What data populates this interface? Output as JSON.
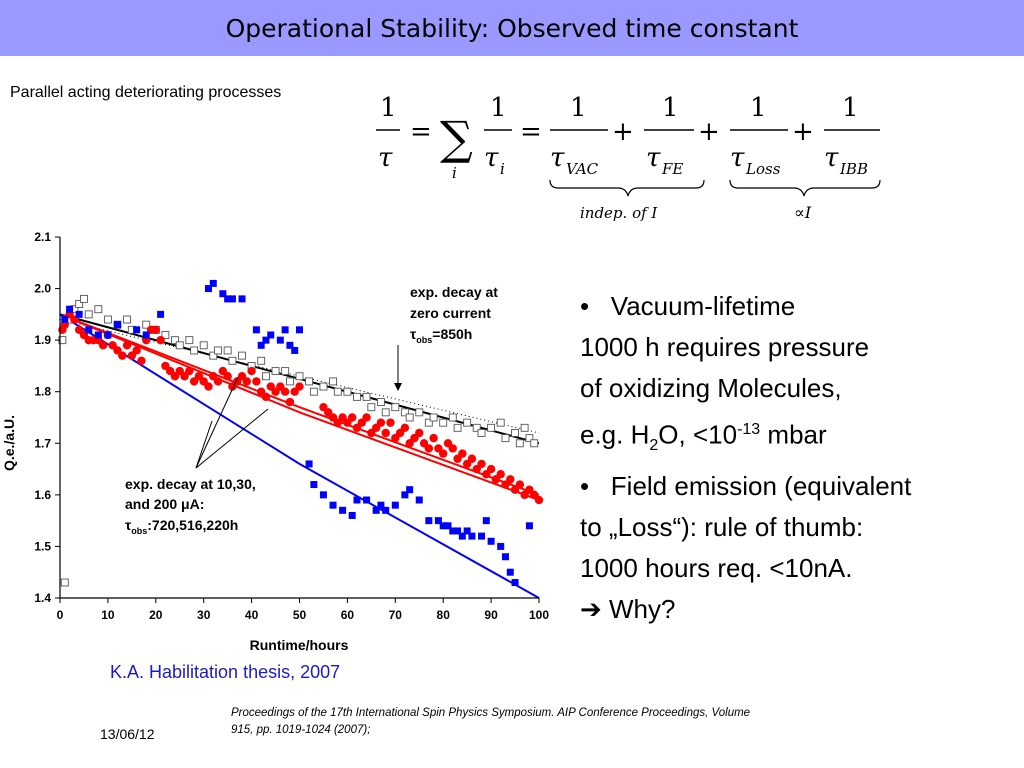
{
  "slide": {
    "title": "Operational Stability: Observed time constant",
    "subtitle": "Parallel acting deteriorating processes",
    "formula": {
      "numerator": "1",
      "tau": "τ",
      "sum": "∑",
      "index_i": "i",
      "sub_vac": "VAC",
      "sub_fe": "FE",
      "sub_loss": "Loss",
      "sub_ibb": "IBB",
      "brace_left_label": "indep. of  I",
      "brace_right_label": "∝I",
      "equals": "=",
      "plus": "+"
    },
    "bullets": {
      "b1_marker": "•",
      "b1_text": "Vacuum-lifetime",
      "line2": "1000 h requires pressure",
      "line3": "of oxidizing Molecules,",
      "line4_a": "e.g.  H",
      "line4_sub": "2",
      "line4_b": "O, <10",
      "line4_sup": "-13",
      "line4_c": " mbar",
      "b2_marker": "•",
      "b2_text": "Field emission (equivalent",
      "line6": "to „Loss“): rule of thumb:",
      "line7": "1000 hours req. <10nA.",
      "arrow": "➔",
      "why": " Why?"
    },
    "thesis_citation": "K.A. Habilitation thesis, 2007",
    "date": "13/06/12",
    "proceedings": "Proceedings of the 17th International Spin Physics Symposium. AIP Conference Proceedings, Volume 915, pp. 1019-1024 (2007);"
  },
  "chart_data": {
    "type": "scatter",
    "xlabel": "Runtime/hours",
    "ylabel": "Q.e./a.U.",
    "xlim": [
      0,
      100
    ],
    "ylim": [
      1.4,
      2.1
    ],
    "xticks": [
      "0",
      "10",
      "20",
      "30",
      "40",
      "50",
      "60",
      "70",
      "80",
      "90",
      "100"
    ],
    "yticks": [
      "1.4",
      "1.5",
      "1.6",
      "1.7",
      "1.8",
      "1.9",
      "2.0",
      "2.1"
    ],
    "annotation_zero": {
      "l1": "exp. decay at",
      "l2": "zero current",
      "l3_tau": "τ",
      "l3_sub": "obs",
      "l3_val": "=850h"
    },
    "annotation_current": {
      "l1": "exp. decay at 10,30,",
      "l2": "and 200 ",
      "l2_mu": "μ",
      "l2_a": "A:",
      "l3_tau": "τ",
      "l3_sub": "obs",
      "l3_val": ":720,516,220h"
    },
    "colors": {
      "zero": "#000000",
      "low": "#ff0000",
      "mid": "#ff0000",
      "high": "#0000ff"
    },
    "series": [
      {
        "marker": "open-square",
        "color": "#555555",
        "points": [
          [
            0.5,
            1.9
          ],
          [
            1,
            1.43
          ],
          [
            2,
            1.94
          ],
          [
            3,
            1.96
          ],
          [
            4,
            1.97
          ],
          [
            5,
            1.98
          ],
          [
            6,
            1.95
          ],
          [
            8,
            1.96
          ],
          [
            10,
            1.94
          ],
          [
            12,
            1.93
          ],
          [
            14,
            1.94
          ],
          [
            15,
            1.92
          ],
          [
            18,
            1.93
          ],
          [
            20,
            1.92
          ],
          [
            22,
            1.91
          ],
          [
            24,
            1.9
          ],
          [
            25,
            1.89
          ],
          [
            27,
            1.9
          ],
          [
            28,
            1.88
          ],
          [
            30,
            1.89
          ],
          [
            32,
            1.87
          ],
          [
            33,
            1.88
          ],
          [
            35,
            1.88
          ],
          [
            36,
            1.86
          ],
          [
            38,
            1.87
          ],
          [
            40,
            1.85
          ],
          [
            42,
            1.86
          ],
          [
            43,
            1.83
          ],
          [
            45,
            1.84
          ],
          [
            47,
            1.84
          ],
          [
            48,
            1.82
          ],
          [
            50,
            1.83
          ],
          [
            52,
            1.82
          ],
          [
            53,
            1.8
          ],
          [
            55,
            1.81
          ],
          [
            57,
            1.82
          ],
          [
            58,
            1.8
          ],
          [
            60,
            1.8
          ],
          [
            62,
            1.79
          ],
          [
            64,
            1.79
          ],
          [
            65,
            1.77
          ],
          [
            67,
            1.78
          ],
          [
            68,
            1.76
          ],
          [
            70,
            1.77
          ],
          [
            72,
            1.76
          ],
          [
            73,
            1.75
          ],
          [
            75,
            1.76
          ],
          [
            77,
            1.74
          ],
          [
            78,
            1.75
          ],
          [
            80,
            1.74
          ],
          [
            82,
            1.75
          ],
          [
            83,
            1.73
          ],
          [
            85,
            1.74
          ],
          [
            87,
            1.73
          ],
          [
            88,
            1.72
          ],
          [
            90,
            1.73
          ],
          [
            92,
            1.74
          ],
          [
            93,
            1.71
          ],
          [
            95,
            1.72
          ],
          [
            96,
            1.7
          ],
          [
            97,
            1.73
          ],
          [
            98,
            1.71
          ],
          [
            99,
            1.7
          ]
        ]
      },
      {
        "marker": "dot",
        "color": "#ff0000",
        "points": [
          [
            0.5,
            1.92
          ],
          [
            1,
            1.93
          ],
          [
            2,
            1.95
          ],
          [
            3,
            1.94
          ],
          [
            4,
            1.92
          ],
          [
            5,
            1.91
          ],
          [
            6,
            1.9
          ],
          [
            7,
            1.9
          ],
          [
            8,
            1.9
          ],
          [
            9,
            1.89
          ],
          [
            10,
            1.91
          ],
          [
            11,
            1.89
          ],
          [
            12,
            1.88
          ],
          [
            13,
            1.87
          ],
          [
            14,
            1.89
          ],
          [
            15,
            1.87
          ],
          [
            16,
            1.88
          ],
          [
            17,
            1.86
          ],
          [
            18,
            1.9
          ],
          [
            19,
            1.92
          ],
          [
            20,
            1.92
          ],
          [
            21,
            1.9
          ],
          [
            22,
            1.85
          ],
          [
            23,
            1.84
          ],
          [
            24,
            1.83
          ],
          [
            25,
            1.84
          ],
          [
            26,
            1.83
          ],
          [
            27,
            1.84
          ],
          [
            28,
            1.82
          ],
          [
            29,
            1.83
          ],
          [
            30,
            1.82
          ],
          [
            31,
            1.81
          ],
          [
            32,
            1.83
          ],
          [
            33,
            1.82
          ],
          [
            34,
            1.84
          ],
          [
            35,
            1.83
          ],
          [
            36,
            1.81
          ],
          [
            37,
            1.82
          ],
          [
            38,
            1.83
          ],
          [
            39,
            1.82
          ],
          [
            40,
            1.84
          ],
          [
            41,
            1.82
          ],
          [
            42,
            1.8
          ],
          [
            43,
            1.79
          ],
          [
            44,
            1.81
          ],
          [
            45,
            1.8
          ],
          [
            46,
            1.81
          ],
          [
            47,
            1.8
          ],
          [
            48,
            1.78
          ],
          [
            49,
            1.8
          ],
          [
            50,
            1.81
          ],
          [
            55,
            1.77
          ],
          [
            56,
            1.76
          ],
          [
            57,
            1.75
          ],
          [
            58,
            1.74
          ],
          [
            59,
            1.75
          ],
          [
            60,
            1.74
          ],
          [
            61,
            1.75
          ],
          [
            62,
            1.73
          ],
          [
            63,
            1.74
          ],
          [
            64,
            1.75
          ],
          [
            65,
            1.72
          ],
          [
            66,
            1.73
          ],
          [
            67,
            1.74
          ],
          [
            68,
            1.72
          ],
          [
            69,
            1.74
          ],
          [
            70,
            1.71
          ],
          [
            71,
            1.72
          ],
          [
            72,
            1.73
          ],
          [
            73,
            1.7
          ],
          [
            74,
            1.71
          ],
          [
            75,
            1.72
          ],
          [
            76,
            1.7
          ],
          [
            77,
            1.69
          ],
          [
            78,
            1.71
          ],
          [
            79,
            1.69
          ],
          [
            80,
            1.68
          ],
          [
            81,
            1.7
          ],
          [
            82,
            1.69
          ],
          [
            83,
            1.67
          ],
          [
            84,
            1.68
          ],
          [
            85,
            1.66
          ],
          [
            86,
            1.67
          ],
          [
            87,
            1.65
          ],
          [
            88,
            1.66
          ],
          [
            89,
            1.64
          ],
          [
            90,
            1.65
          ],
          [
            91,
            1.63
          ],
          [
            92,
            1.64
          ],
          [
            93,
            1.62
          ],
          [
            94,
            1.63
          ],
          [
            95,
            1.61
          ],
          [
            96,
            1.62
          ],
          [
            97,
            1.6
          ],
          [
            98,
            1.61
          ],
          [
            99,
            1.6
          ],
          [
            100,
            1.59
          ]
        ]
      },
      {
        "marker": "filled-square",
        "color": "#0000ff",
        "points": [
          [
            1,
            1.94
          ],
          [
            2,
            1.96
          ],
          [
            4,
            1.95
          ],
          [
            6,
            1.92
          ],
          [
            8,
            1.91
          ],
          [
            10,
            1.91
          ],
          [
            12,
            1.93
          ],
          [
            16,
            1.92
          ],
          [
            18,
            1.91
          ],
          [
            21,
            1.95
          ],
          [
            31,
            2.0
          ],
          [
            32,
            2.01
          ],
          [
            34,
            1.99
          ],
          [
            35,
            1.98
          ],
          [
            36,
            1.98
          ],
          [
            38,
            1.98
          ],
          [
            41,
            1.92
          ],
          [
            42,
            1.89
          ],
          [
            43,
            1.9
          ],
          [
            44,
            1.91
          ],
          [
            46,
            1.9
          ],
          [
            47,
            1.92
          ],
          [
            48,
            1.89
          ],
          [
            49,
            1.88
          ],
          [
            50,
            1.92
          ],
          [
            52,
            1.66
          ],
          [
            53,
            1.62
          ],
          [
            55,
            1.6
          ],
          [
            57,
            1.58
          ],
          [
            59,
            1.57
          ],
          [
            61,
            1.56
          ],
          [
            62,
            1.59
          ],
          [
            64,
            1.59
          ],
          [
            66,
            1.57
          ],
          [
            67,
            1.58
          ],
          [
            68,
            1.57
          ],
          [
            70,
            1.58
          ],
          [
            72,
            1.6
          ],
          [
            73,
            1.61
          ],
          [
            75,
            1.59
          ],
          [
            77,
            1.55
          ],
          [
            79,
            1.55
          ],
          [
            80,
            1.54
          ],
          [
            81,
            1.54
          ],
          [
            82,
            1.53
          ],
          [
            83,
            1.53
          ],
          [
            84,
            1.52
          ],
          [
            85,
            1.53
          ],
          [
            86,
            1.52
          ],
          [
            88,
            1.52
          ],
          [
            89,
            1.55
          ],
          [
            90,
            1.51
          ],
          [
            92,
            1.5
          ],
          [
            93,
            1.48
          ],
          [
            94,
            1.45
          ],
          [
            95,
            1.43
          ],
          [
            98,
            1.54
          ]
        ]
      }
    ],
    "fits": [
      {
        "name": "zero",
        "color": "#000000",
        "points": [
          [
            0,
            1.95
          ],
          [
            100,
            1.7
          ]
        ]
      },
      {
        "name": "dotted",
        "color": "#000000",
        "points": [
          [
            0,
            1.94
          ],
          [
            100,
            1.72
          ]
        ]
      },
      {
        "name": "red1",
        "color": "#ff0000",
        "points": [
          [
            0,
            1.95
          ],
          [
            50,
            1.77
          ],
          [
            100,
            1.6
          ]
        ]
      },
      {
        "name": "red2",
        "color": "#ff0000",
        "points": [
          [
            0,
            1.95
          ],
          [
            50,
            1.76
          ],
          [
            100,
            1.59
          ]
        ]
      },
      {
        "name": "blue",
        "color": "#0000ff",
        "points": [
          [
            0,
            1.95
          ],
          [
            50,
            1.66
          ],
          [
            100,
            1.4
          ]
        ]
      }
    ]
  }
}
